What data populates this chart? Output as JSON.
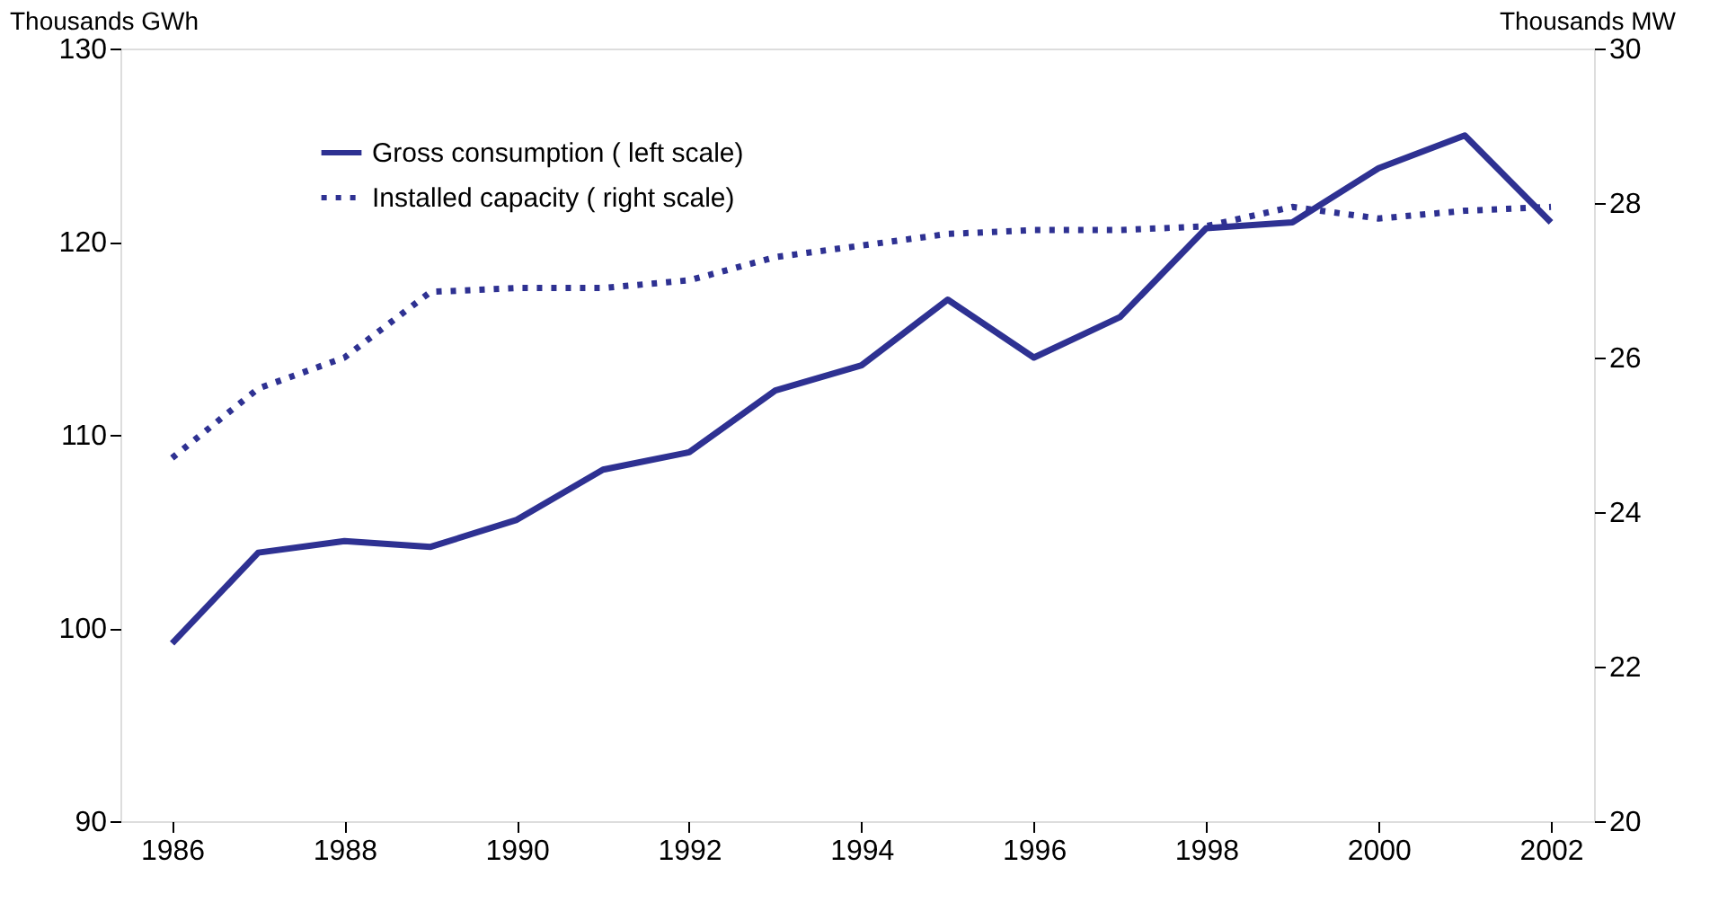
{
  "chart_data": {
    "type": "line",
    "x": [
      1986,
      1987,
      1988,
      1989,
      1990,
      1991,
      1992,
      1993,
      1994,
      1995,
      1996,
      1997,
      1998,
      1999,
      2000,
      2001,
      2002
    ],
    "series": [
      {
        "name": "Gross consumption  ( left scale)",
        "color": "#2e3192",
        "line_style": "solid",
        "values": [
          99.2,
          103.9,
          104.5,
          104.2,
          105.6,
          108.2,
          109.1,
          112.3,
          113.6,
          117.0,
          114.0,
          116.1,
          120.7,
          121.0,
          123.8,
          125.5,
          121.0
        ]
      },
      {
        "name": "Installed capacity ( right scale)",
        "color": "#2e3192",
        "line_style": "dotted",
        "axis": "y2",
        "values": [
          24.7,
          25.6,
          26.0,
          26.85,
          26.9,
          26.9,
          27.0,
          27.3,
          27.45,
          27.6,
          27.65,
          27.65,
          27.7,
          27.95,
          27.8,
          27.9,
          27.95
        ]
      }
    ],
    "ylabel": "Thousands GWh",
    "y2label": "Thousands MW",
    "xlim": [
      1985.4,
      2002.5
    ],
    "xticks": [
      1986,
      1988,
      1990,
      1992,
      1994,
      1996,
      1998,
      2000,
      2002
    ],
    "ylim": [
      90,
      130
    ],
    "yticks": [
      90,
      100,
      110,
      120,
      130
    ],
    "y2lim": [
      20,
      30
    ],
    "y2ticks": [
      20,
      22,
      24,
      26,
      28,
      30
    ],
    "grid": false,
    "legend": "top left",
    "marker": "none"
  }
}
